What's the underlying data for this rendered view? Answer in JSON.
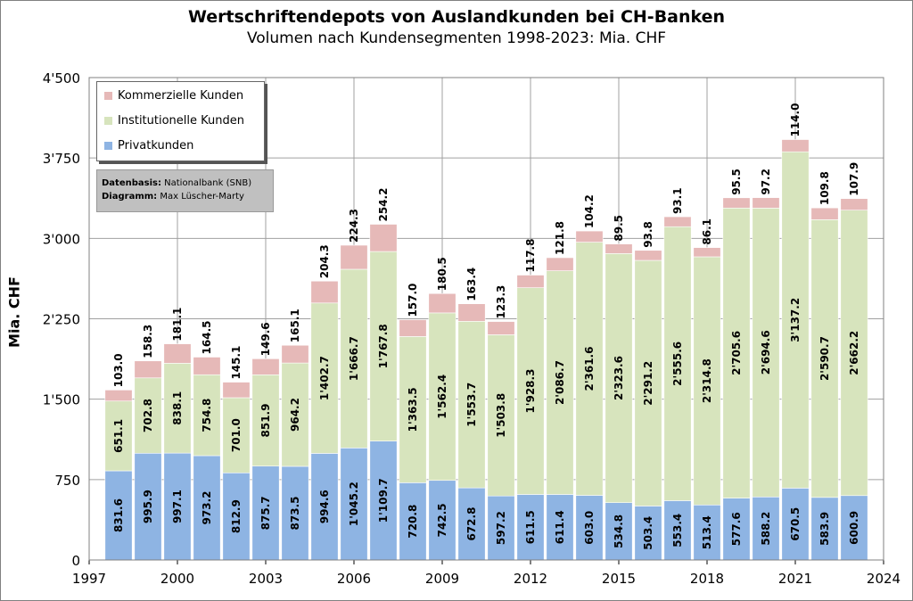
{
  "header": {
    "title": "Wertschriftendepots von Auslandkunden bei CH-Banken",
    "subtitle": "Volumen nach Kundensegmenten 1998-2023: Mia. CHF"
  },
  "source_box": {
    "line1_label": "Datenbasis:",
    "line1_value": "Nationalbank (SNB)",
    "line2_label": "Diagramm:",
    "line2_value": "Max Lüscher-Marty"
  },
  "colors": {
    "privat": "#8eb4e3",
    "institutionell": "#d7e4bd",
    "kommerziell": "#e6b9b8",
    "grid": "#a0a0a0"
  },
  "chart_data": {
    "type": "bar",
    "stacked": true,
    "ylabel": "Mia. CHF",
    "xlabel": "",
    "ylim": [
      0,
      4500
    ],
    "xlim": [
      1997,
      2024
    ],
    "y_ticks": [
      "0",
      "750",
      "1'500",
      "2'250",
      "3'000",
      "3'750",
      "4'500"
    ],
    "x_ticks": [
      "1997",
      "2000",
      "2003",
      "2006",
      "2009",
      "2012",
      "2015",
      "2018",
      "2021",
      "2024"
    ],
    "grid": true,
    "legend_position": "top-left",
    "categories": [
      1998,
      1999,
      2000,
      2001,
      2002,
      2003,
      2004,
      2005,
      2006,
      2007,
      2008,
      2009,
      2010,
      2011,
      2012,
      2013,
      2014,
      2015,
      2016,
      2017,
      2018,
      2019,
      2020,
      2021,
      2022,
      2023
    ],
    "series": [
      {
        "name": "Privatkunden",
        "values": [
          831.6,
          995.9,
          997.1,
          973.2,
          812.9,
          875.7,
          873.5,
          994.6,
          1045.2,
          1109.7,
          720.8,
          742.5,
          672.8,
          597.2,
          611.5,
          611.4,
          603.0,
          534.8,
          503.4,
          553.4,
          513.4,
          577.6,
          588.2,
          670.5,
          583.9,
          600.9
        ],
        "labels": [
          "831.6",
          "995.9",
          "997.1",
          "973.2",
          "812.9",
          "875.7",
          "873.5",
          "994.6",
          "1'045.2",
          "1'109.7",
          "720.8",
          "742.5",
          "672.8",
          "597.2",
          "611.5",
          "611.4",
          "603.0",
          "534.8",
          "503.4",
          "553.4",
          "513.4",
          "577.6",
          "588.2",
          "670.5",
          "583.9",
          "600.9"
        ]
      },
      {
        "name": "Institutionelle Kunden",
        "values": [
          651.1,
          702.8,
          838.1,
          754.8,
          701.0,
          851.9,
          964.2,
          1402.7,
          1666.7,
          1767.8,
          1363.5,
          1562.4,
          1553.7,
          1503.8,
          1928.3,
          2086.7,
          2361.6,
          2323.6,
          2291.2,
          2555.6,
          2314.8,
          2705.6,
          2694.6,
          3137.2,
          2590.7,
          2662.2
        ],
        "labels": [
          "651.1",
          "702.8",
          "838.1",
          "754.8",
          "701.0",
          "851.9",
          "964.2",
          "1'402.7",
          "1'666.7",
          "1'767.8",
          "1'363.5",
          "1'562.4",
          "1'553.7",
          "1'503.8",
          "1'928.3",
          "2'086.7",
          "2'361.6",
          "2'323.6",
          "2'291.2",
          "2'555.6",
          "2'314.8",
          "2'705.6",
          "2'694.6",
          "3'137.2",
          "2'590.7",
          "2'662.2"
        ]
      },
      {
        "name": "Kommerzielle Kunden",
        "values": [
          103.0,
          158.3,
          181.1,
          164.5,
          145.1,
          149.6,
          165.1,
          204.3,
          224.3,
          254.2,
          157.0,
          180.5,
          163.4,
          123.3,
          117.8,
          121.8,
          104.2,
          89.5,
          93.8,
          93.1,
          86.1,
          95.5,
          97.2,
          114.0,
          109.8,
          107.9
        ],
        "labels": [
          "103.0",
          "158.3",
          "181.1",
          "164.5",
          "145.1",
          "149.6",
          "165.1",
          "204.3",
          "224.3",
          "254.2",
          "157.0",
          "180.5",
          "163.4",
          "123.3",
          "117.8",
          "121.8",
          "104.2",
          "89.5",
          "93.8",
          "93.1",
          "86.1",
          "95.5",
          "97.2",
          "114.0",
          "109.8",
          "107.9"
        ]
      }
    ]
  }
}
